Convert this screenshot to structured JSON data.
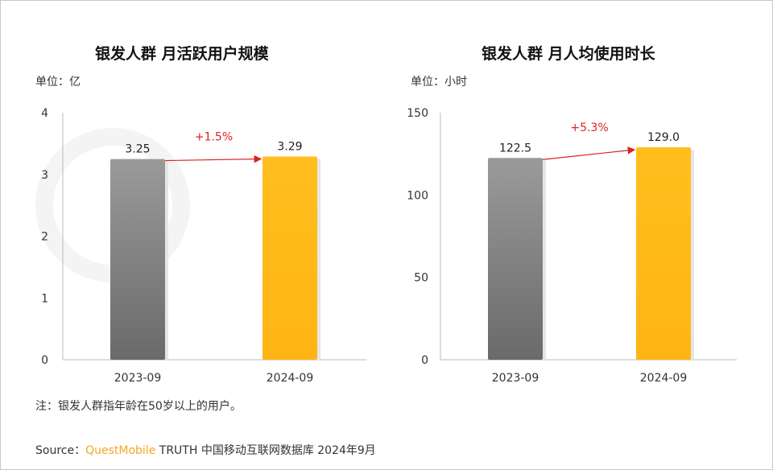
{
  "watermark": "QUESTMOBILE",
  "chart_data": [
    {
      "type": "bar",
      "title": "银发人群 月活跃用户规模",
      "unit": "单位：亿",
      "categories": [
        "2023-09",
        "2024-09"
      ],
      "values": [
        3.25,
        3.29
      ],
      "value_labels": [
        "3.25",
        "3.29"
      ],
      "ylim": [
        0,
        4
      ],
      "yticks": [
        0,
        1,
        2,
        3,
        4
      ],
      "annotation": "+1.5%",
      "colors": [
        "#888888",
        "#ffb81c"
      ]
    },
    {
      "type": "bar",
      "title": "银发人群 月人均使用时长",
      "unit": "单位：小时",
      "categories": [
        "2023-09",
        "2024-09"
      ],
      "values": [
        122.5,
        129.0
      ],
      "value_labels": [
        "122.5",
        "129.0"
      ],
      "ylim": [
        0,
        150
      ],
      "yticks": [
        0,
        50,
        100,
        150
      ],
      "annotation": "+5.3%",
      "colors": [
        "#888888",
        "#ffb81c"
      ]
    }
  ],
  "note": "注：银发人群指年龄在50岁以上的用户。",
  "source": {
    "label": "Source：",
    "brand": "QuestMobile",
    "text": " TRUTH 中国移动互联网数据库 2024年9月"
  }
}
